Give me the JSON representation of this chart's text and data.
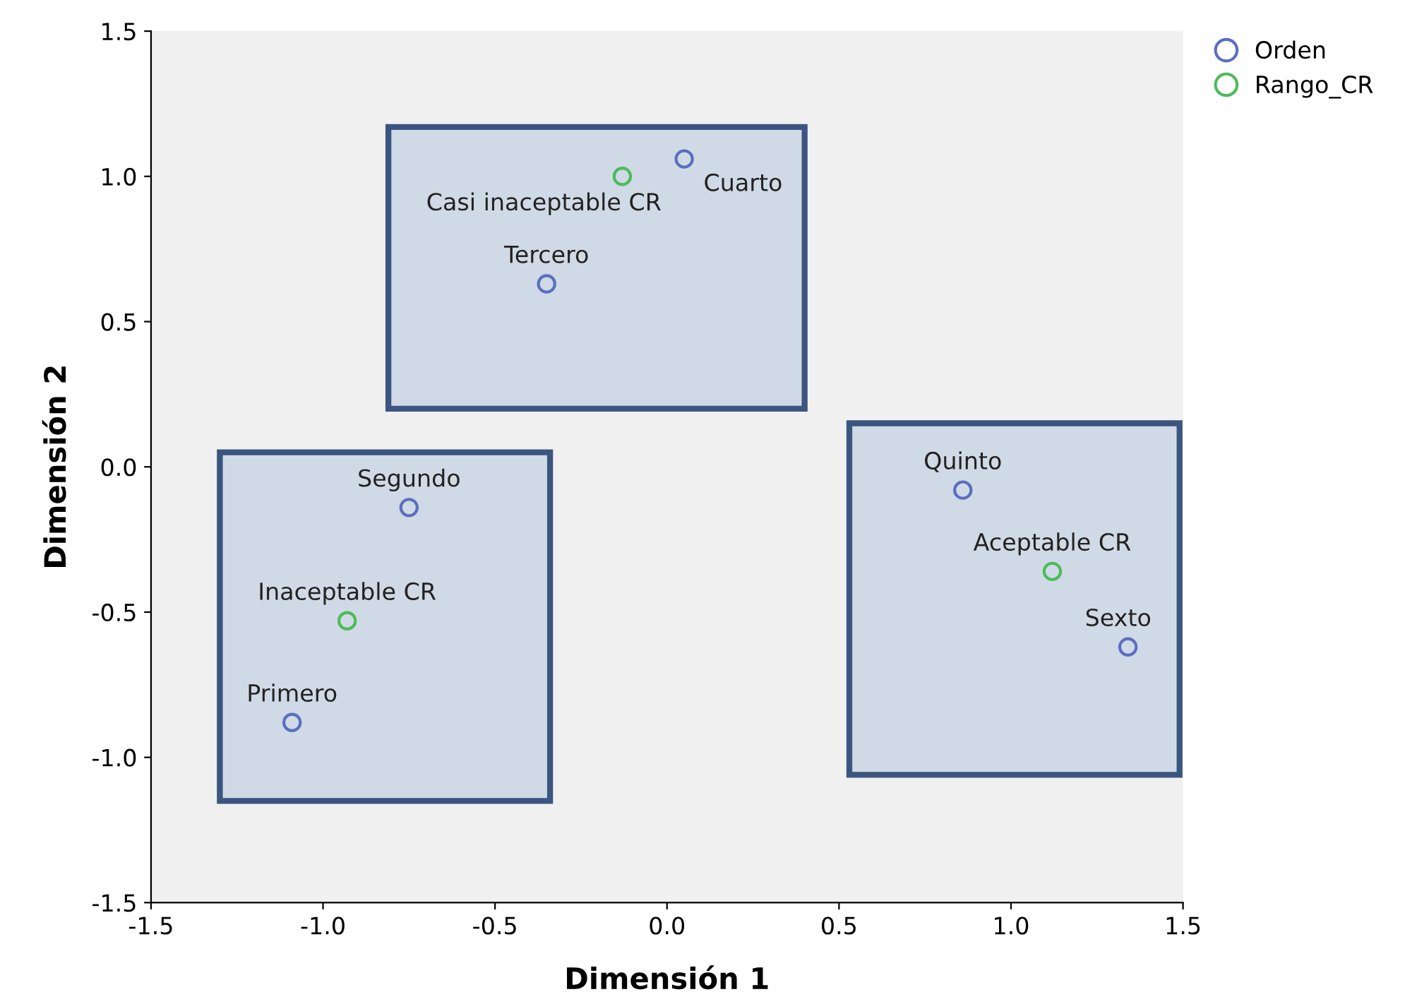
{
  "chart_data": {
    "type": "scatter",
    "xlabel": "Dimensión 1",
    "ylabel": "Dimensión 2",
    "xlim": [
      -1.5,
      1.5
    ],
    "ylim": [
      -1.5,
      1.5
    ],
    "xticks": [
      {
        "value": -1.5,
        "label": "-1.5"
      },
      {
        "value": -1.0,
        "label": "-1.0"
      },
      {
        "value": -0.5,
        "label": "-0.5"
      },
      {
        "value": 0,
        "label": "0.0"
      },
      {
        "value": 0.5,
        "label": "0.5"
      },
      {
        "value": 1.0,
        "label": "1.0"
      },
      {
        "value": 1.5,
        "label": "1.5"
      }
    ],
    "yticks": [
      {
        "value": -1.5,
        "label": "-1.5"
      },
      {
        "value": -1.0,
        "label": "-1.0"
      },
      {
        "value": -0.5,
        "label": "-0.5"
      },
      {
        "value": 0,
        "label": "0.0"
      },
      {
        "value": 0.5,
        "label": "0.5"
      },
      {
        "value": 1.0,
        "label": "1.0"
      },
      {
        "value": 1.5,
        "label": "1.5"
      }
    ],
    "grid": false,
    "legend": "top right",
    "marker": "circle",
    "series": [
      {
        "name": "Orden",
        "color": "#5b6fc0",
        "x": [
          -1.09,
          -0.75,
          -0.35,
          0.05,
          0.86,
          1.34
        ],
        "values": [
          -0.88,
          -0.14,
          0.63,
          1.06,
          -0.08,
          -0.62
        ]
      },
      {
        "name": "Rango_CR",
        "color": "#4cbb5a",
        "x": [
          -0.93,
          -0.13,
          1.12
        ],
        "values": [
          -0.53,
          1.0,
          -0.36
        ]
      }
    ],
    "annotations": [
      {
        "text": "Primero",
        "x": -1.09,
        "y": -0.88
      },
      {
        "text": "Segundo",
        "x": -0.75,
        "y": -0.14
      },
      {
        "text": "Tercero",
        "x": -0.35,
        "y": 0.63
      },
      {
        "text": "Cuarto",
        "x": 0.05,
        "y": 1.06
      },
      {
        "text": "Quinto",
        "x": 0.86,
        "y": -0.08
      },
      {
        "text": "Sexto",
        "x": 1.34,
        "y": -0.62
      },
      {
        "text": "Inaceptable CR",
        "x": -0.93,
        "y": -0.53
      },
      {
        "text": "Casi inaceptable CR",
        "x": -0.13,
        "y": 1.0
      },
      {
        "text": "Aceptable CR",
        "x": 1.12,
        "y": -0.36
      }
    ]
  }
}
